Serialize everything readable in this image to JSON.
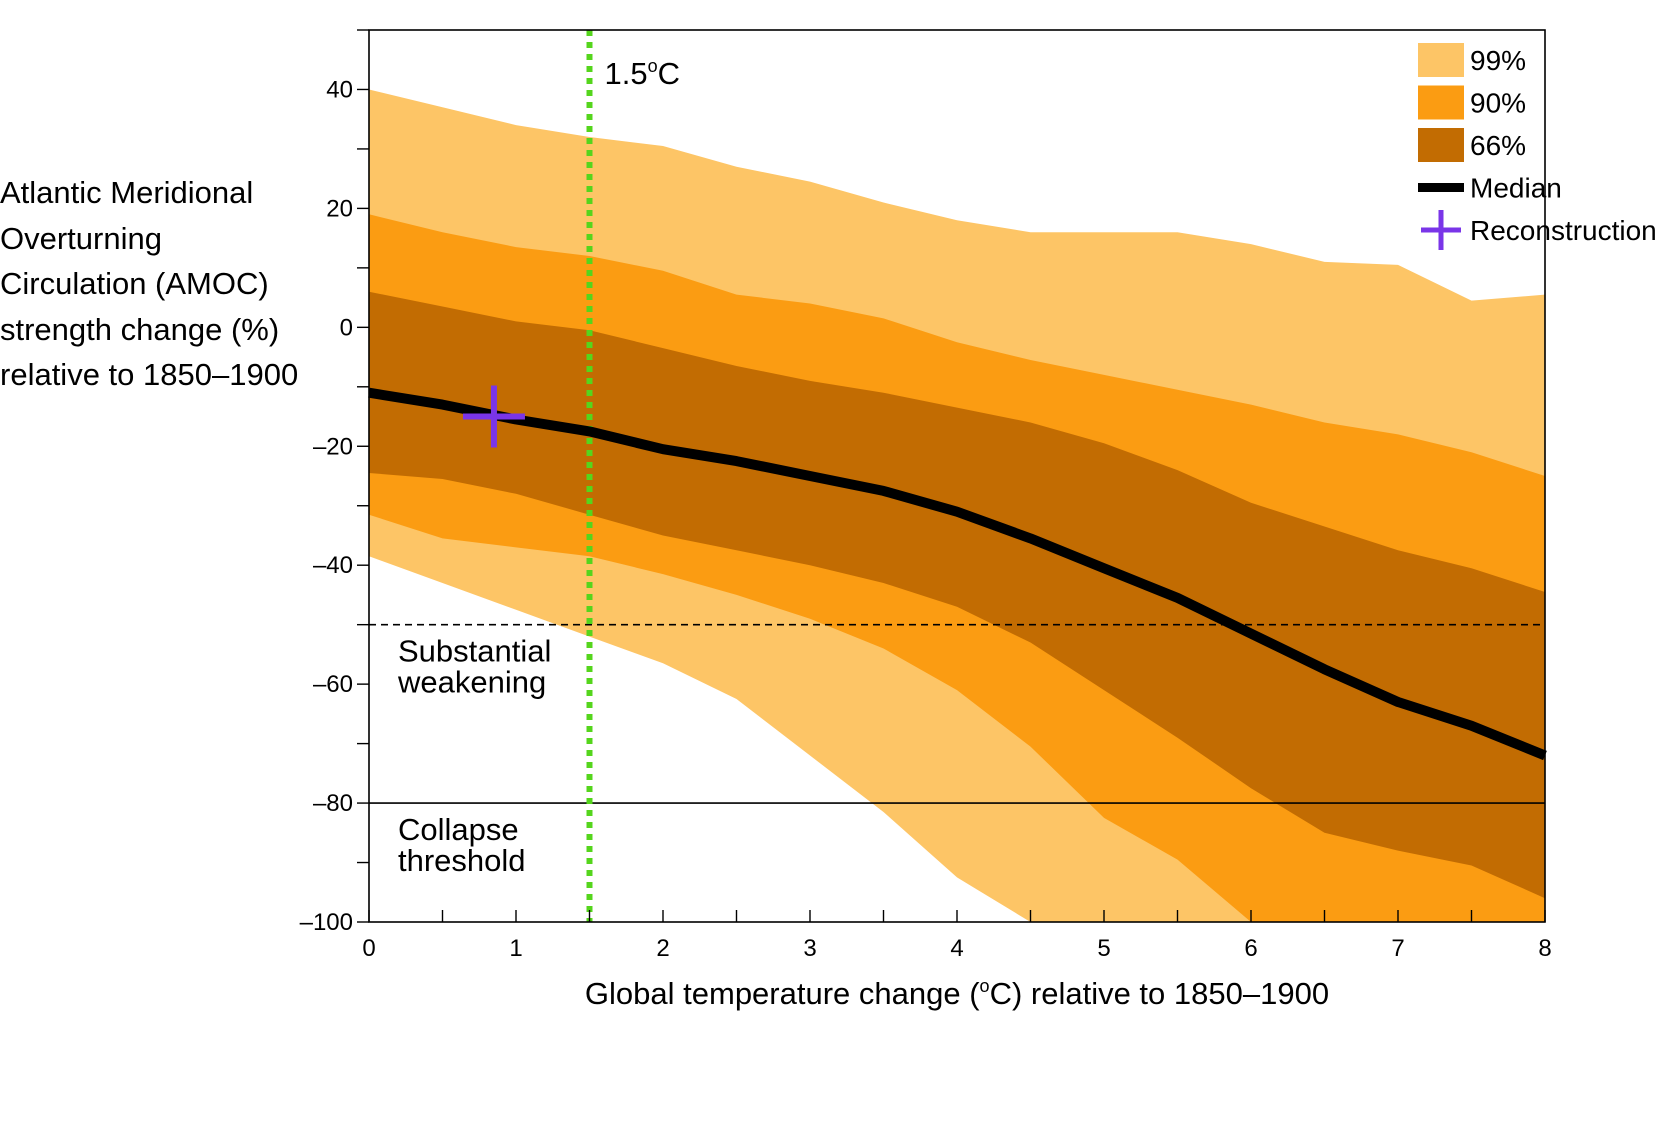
{
  "chart_data": {
    "type": "area",
    "xlabel": "Global temperature change (°C) relative to 1850–1900",
    "ylabel_lines": [
      "Atlantic Meridional",
      "Overturning",
      "Circulation (AMOC)",
      "strength change (%)",
      "relative to 1850–1900"
    ],
    "xlim": [
      0,
      8
    ],
    "ylim": [
      -100,
      50
    ],
    "xticks": [
      0,
      1,
      2,
      3,
      4,
      5,
      6,
      7,
      8
    ],
    "xtick_labels": [
      "0",
      "1",
      "2",
      "3",
      "4",
      "5",
      "6",
      "7",
      "8"
    ],
    "yticks": [
      40,
      20,
      0,
      -20,
      -40,
      -60,
      -80,
      -100
    ],
    "ytick_labels": [
      "40",
      "20",
      "0",
      "–20",
      "–40",
      "–60",
      "–80",
      "–100"
    ],
    "x": [
      0,
      0.5,
      1,
      1.5,
      2,
      2.5,
      3,
      3.5,
      4,
      4.5,
      5,
      5.5,
      6,
      6.5,
      7,
      7.5,
      8
    ],
    "bands": [
      {
        "name": "99%",
        "color": "#FDC566",
        "upper": [
          40,
          37,
          34,
          32,
          30.5,
          27,
          24.5,
          21,
          18,
          16,
          16,
          16,
          14,
          11,
          10.5,
          4.5,
          5.5
        ],
        "lower": [
          -38.5,
          -43,
          -47.5,
          -52,
          -56.5,
          -62.5,
          -72,
          -81.5,
          -92.5,
          -100,
          -100,
          -100,
          -100,
          -100,
          -100,
          -100,
          -100
        ]
      },
      {
        "name": "90%",
        "color": "#FB9C12",
        "upper": [
          19,
          16,
          13.5,
          12,
          9.5,
          5.5,
          4,
          1.5,
          -2.5,
          -5.5,
          -8,
          -10.5,
          -13,
          -16,
          -18,
          -21,
          -25
        ],
        "lower": [
          -31.5,
          -35.5,
          -37,
          -38.5,
          -41.5,
          -45,
          -49,
          -54,
          -61,
          -70.5,
          -82.5,
          -89.5,
          -100,
          -100,
          -100,
          -100,
          -100
        ]
      },
      {
        "name": "66%",
        "color": "#C26C02",
        "upper": [
          6,
          3.5,
          1,
          -0.5,
          -3.5,
          -6.5,
          -9,
          -11,
          -13.5,
          -16,
          -19.5,
          -24,
          -29.5,
          -33.5,
          -37.5,
          -40.5,
          -44.5
        ],
        "lower": [
          -24.5,
          -25.5,
          -28,
          -31.5,
          -35,
          -37.5,
          -40,
          -43,
          -47,
          -53,
          -61,
          -69,
          -77.5,
          -85,
          -88,
          -90.5,
          -96
        ]
      }
    ],
    "series": [
      {
        "name": "Median",
        "color": "#000000",
        "values": [
          -11,
          -13,
          -15.5,
          -17.5,
          -20.5,
          -22.5,
          -25,
          -27.5,
          -31,
          -35.5,
          -40.5,
          -45.5,
          -51.5,
          -57.5,
          -63,
          -67,
          -72
        ]
      }
    ],
    "reconstruction": {
      "name": "Reconstruction",
      "x": 0.85,
      "y": -15,
      "color": "#7A35E8"
    },
    "reference_line": {
      "x": 1.5,
      "label": "1.5°C",
      "color": "#55D51C"
    },
    "thresholds": [
      {
        "y": -50,
        "style": "dashed",
        "label_lines": [
          "Substantial",
          "weakening"
        ]
      },
      {
        "y": -80,
        "style": "solid",
        "label_lines": [
          "Collapse",
          "threshold"
        ]
      }
    ],
    "legend": {
      "placement": "top-right",
      "items": [
        {
          "label": "99%",
          "kind": "patch",
          "color": "#FDC566"
        },
        {
          "label": "90%",
          "kind": "patch",
          "color": "#FB9C12"
        },
        {
          "label": "66%",
          "kind": "patch",
          "color": "#C26C02"
        },
        {
          "label": "Median",
          "kind": "line",
          "color": "#000000"
        },
        {
          "label": "Reconstruction",
          "kind": "cross",
          "color": "#7A35E8"
        }
      ]
    },
    "grid": false
  }
}
